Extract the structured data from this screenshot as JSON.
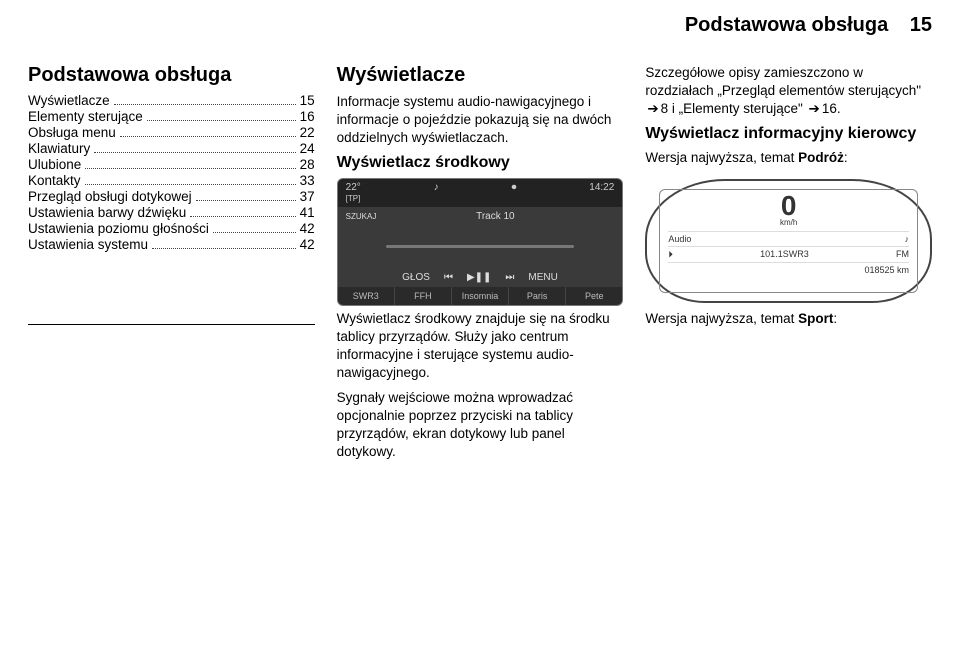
{
  "header": {
    "title": "Podstawowa obsługa",
    "page_number": "15"
  },
  "col1": {
    "heading": "Podstawowa obsługa",
    "toc": [
      {
        "label": "Wyświetlacze",
        "page": "15"
      },
      {
        "label": "Elementy sterujące",
        "page": "16"
      },
      {
        "label": "Obsługa menu",
        "page": "22"
      },
      {
        "label": "Klawiatury",
        "page": "24"
      },
      {
        "label": "Ulubione",
        "page": "28"
      },
      {
        "label": "Kontakty",
        "page": "33"
      },
      {
        "label": "Przegląd obsługi dotykowej",
        "page": "37"
      },
      {
        "label": "Ustawienia barwy dźwięku",
        "page": "41"
      },
      {
        "label": "Ustawienia poziomu głośności",
        "page": "42"
      },
      {
        "label": "Ustawienia systemu",
        "page": "42"
      }
    ]
  },
  "col2": {
    "heading": "Wyświetlacze",
    "intro": "Informacje systemu audio-nawigacyjnego i informacje o pojeździe pokazują się na dwóch oddzielnych wyświetlaczach.",
    "subheading": "Wyświetlacz środkowy",
    "shot": {
      "temp": "22°",
      "tp": "[TP]",
      "music_icon": "♪",
      "rec_icon": "⏺",
      "time": "14:22",
      "szukaj": "SZUKAJ",
      "track": "Track 10",
      "ctrl": [
        "GŁOS",
        "⏮",
        "▶❚❚",
        "⏭",
        "MENU"
      ],
      "tabs": [
        "SWR3",
        "FFH",
        "Insomnia",
        "Paris",
        "Pete"
      ]
    }
  },
  "col3": {
    "desc1": "Szczegółowe opisy zamieszczono w rozdziałach „Przegląd elementów sterujących\" ",
    "desc1_ref1": "8",
    "desc1_mid": " i „Elementy sterujące\" ",
    "desc1_ref2": "16",
    "desc1_end": ".",
    "subheading": "Wyświetlacz informacyjny kierowcy",
    "line2": "Wersja najwyższa, temat ",
    "line2_bold": "Podróż",
    "line2_end": ":",
    "cluster": {
      "speed": "0",
      "unit": "km/h",
      "rows": [
        {
          "l": "Audio",
          "r": "♪"
        },
        {
          "l": "⏵",
          "m": "101.1SWR3",
          "r": "FM"
        },
        {
          "l": "",
          "r": "018525 km"
        }
      ]
    }
  },
  "row2": {
    "mid": {
      "p1": "Wyświetlacz środkowy znajduje się na środku tablicy przyrządów. Służy jako centrum informacyjne i sterujące systemu audio-nawigacyjnego.",
      "p2": "Sygnały wejściowe można wprowadzać opcjonalnie poprzez przyciski na tablicy przyrządów, ekran dotykowy lub panel dotykowy."
    },
    "right": {
      "line": "Wersja najwyższa, temat ",
      "bold": "Sport",
      "end": ":"
    }
  }
}
